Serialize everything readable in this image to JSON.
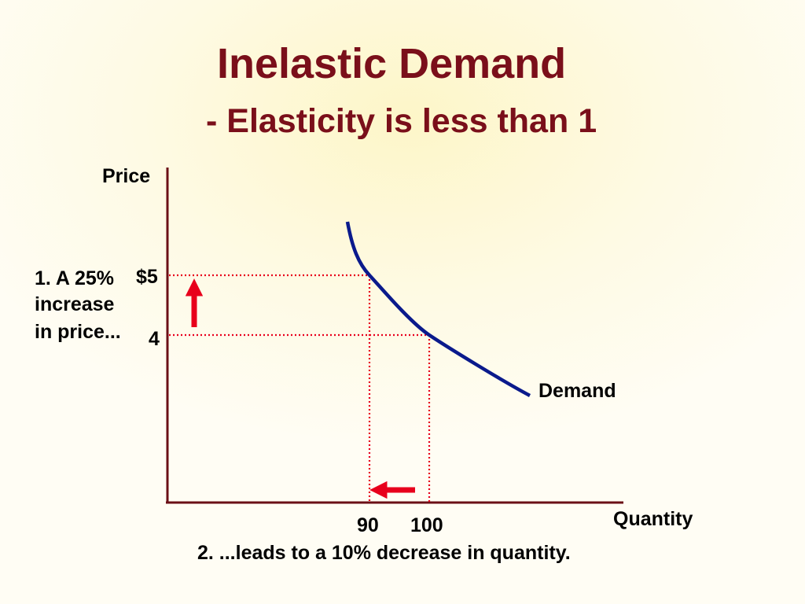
{
  "slide": {
    "title": "Inelastic Demand",
    "subtitle": "- Elasticity is less than 1"
  },
  "colors": {
    "title": "#7a0f1a",
    "axis": "#6b0f16",
    "demand_curve": "#0a1a8c",
    "guide_lines": "#e8001c",
    "arrows": "#e8001c"
  },
  "chart_data": {
    "type": "line",
    "xlabel": "Quantity",
    "ylabel": "Price",
    "series": [
      {
        "name": "Demand",
        "points": [
          [
            83,
            6.0
          ],
          [
            90,
            5
          ],
          [
            100,
            4
          ],
          [
            117,
            3.0
          ]
        ]
      }
    ],
    "highlight_points": [
      {
        "x": 90,
        "y": 5
      },
      {
        "x": 100,
        "y": 4
      }
    ],
    "x_tick_labels": [
      "90",
      "100"
    ],
    "y_tick_labels": [
      "$5",
      "4"
    ],
    "price_annotation": [
      "1. A 25%",
      "increase",
      "in price..."
    ],
    "quantity_annotation": "2. ...leads to a 10% decrease in quantity.",
    "arrows": [
      "up",
      "left"
    ],
    "grid": false
  }
}
